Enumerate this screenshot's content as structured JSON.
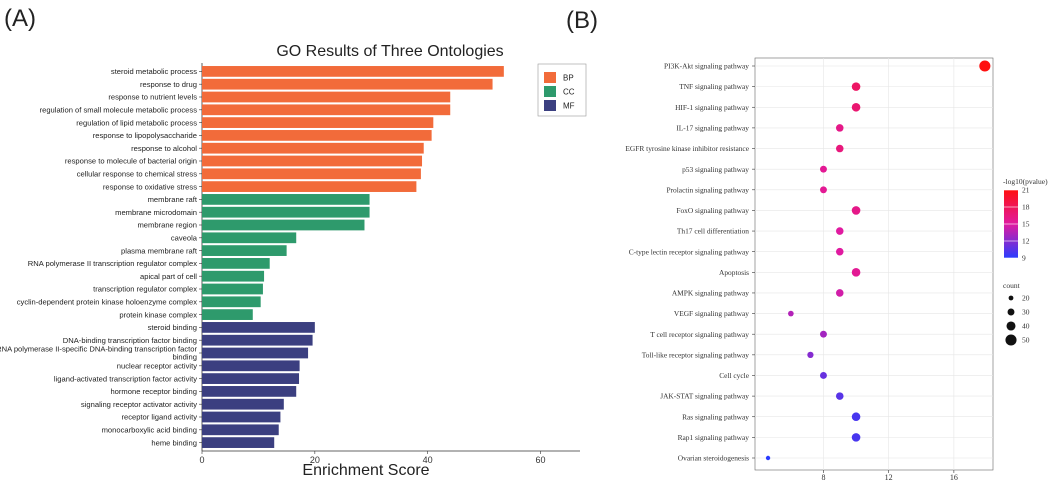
{
  "panel_a_label": "(A)",
  "panel_b_label": "(B)",
  "chart_data": [
    {
      "type": "bar",
      "orientation": "horizontal",
      "title": "GO Results of Three Ontologies",
      "xlabel": "Enrichment Score",
      "ylabel": "",
      "xlim": [
        0,
        67
      ],
      "xticks": [
        0,
        20,
        40,
        60
      ],
      "legend": {
        "position": "top-right",
        "entries": [
          {
            "name": "BP",
            "color": "#f26b3a"
          },
          {
            "name": "CC",
            "color": "#2e9a6c"
          },
          {
            "name": "MF",
            "color": "#3b3f80"
          }
        ]
      },
      "categories": [
        "steroid metabolic process",
        "response to drug",
        "response to nutrient levels",
        "regulation of small molecule metabolic process",
        "regulation of lipid metabolic process",
        "response to lipopolysaccharide",
        "response to alcohol",
        "response to molecule of bacterial origin",
        "cellular response to chemical stress",
        "response to oxidative stress",
        "membrane raft",
        "membrane microdomain",
        "membrane region",
        "caveola",
        "plasma membrane raft",
        "RNA polymerase II transcription regulator complex",
        "apical part of cell",
        "transcription regulator complex",
        "cyclin-dependent protein kinase holoenzyme complex",
        "protein kinase complex",
        "steroid binding",
        "DNA-binding transcription factor binding",
        "RNA polymerase II-specific DNA-binding transcription factor binding",
        "nuclear receptor activity",
        "ligand-activated transcription factor activity",
        "hormone receptor binding",
        "signaling receptor activator activity",
        "receptor ligand activity",
        "monocarboxylic acid binding",
        "heme binding"
      ],
      "groups": [
        "BP",
        "BP",
        "BP",
        "BP",
        "BP",
        "BP",
        "BP",
        "BP",
        "BP",
        "BP",
        "CC",
        "CC",
        "CC",
        "CC",
        "CC",
        "CC",
        "CC",
        "CC",
        "CC",
        "CC",
        "MF",
        "MF",
        "MF",
        "MF",
        "MF",
        "MF",
        "MF",
        "MF",
        "MF",
        "MF"
      ],
      "values": [
        53.5,
        51.5,
        44,
        44,
        41,
        40.7,
        39.3,
        39,
        38.8,
        38,
        29.7,
        29.7,
        28.8,
        16.7,
        15,
        12,
        11,
        10.8,
        10.4,
        9,
        20,
        19.6,
        18.8,
        17.3,
        17.2,
        16.7,
        14.5,
        13.9,
        13.6,
        12.8
      ]
    },
    {
      "type": "scatter",
      "subtype": "dot-plot",
      "title": "",
      "xlabel": "",
      "xlim": [
        3.8,
        18.4
      ],
      "xticks": [
        8,
        12,
        16
      ],
      "legend": {
        "position": "right",
        "color_title": "-log10(pvalue)",
        "color_ticks": [
          21,
          18,
          15,
          12,
          9
        ],
        "color_range": [
          9,
          21
        ],
        "colors": [
          "#2a3cff",
          "#e01aa0",
          "#ff1010"
        ],
        "size_title": "count",
        "size_ticks": [
          20,
          30,
          40,
          50
        ]
      },
      "categories": [
        "PI3K-Akt signaling pathway",
        "TNF signaling pathway",
        "HIF-1 signaling pathway",
        "IL-17 signaling pathway",
        "EGFR tyrosine kinase inhibitor resistance",
        "p53 signaling pathway",
        "Prolactin signaling pathway",
        "FoxO signaling pathway",
        "Th17 cell differentiation",
        "C-type lectin receptor signaling pathway",
        "Apoptosis",
        "AMPK signaling pathway",
        "VEGF signaling pathway",
        "T cell receptor signaling pathway",
        "Toll-like receptor signaling pathway",
        "Cell cycle",
        "JAK-STAT signaling pathway",
        "Ras signaling pathway",
        "Rap1 signaling pathway",
        "Ovarian steroidogenesis"
      ],
      "x": [
        17.9,
        10,
        10,
        9,
        9,
        8,
        8,
        10,
        9,
        9,
        10,
        9,
        6,
        8,
        7.2,
        8,
        9,
        10,
        10,
        4.6
      ],
      "color_value": [
        21,
        17.5,
        17,
        16,
        16.5,
        15.5,
        15.5,
        16,
        15,
        15,
        15.5,
        14.5,
        13.5,
        13,
        12,
        11,
        10.5,
        10,
        10,
        9
      ],
      "count": [
        50,
        38,
        38,
        33,
        33,
        30,
        30,
        38,
        33,
        33,
        38,
        33,
        24,
        30,
        27,
        30,
        33,
        38,
        38,
        18
      ]
    }
  ]
}
